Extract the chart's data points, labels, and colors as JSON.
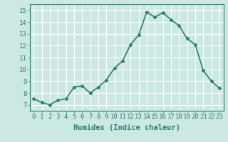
{
  "x": [
    0,
    1,
    2,
    3,
    4,
    5,
    6,
    7,
    8,
    9,
    10,
    11,
    12,
    13,
    14,
    15,
    16,
    17,
    18,
    19,
    20,
    21,
    22,
    23
  ],
  "y": [
    7.5,
    7.2,
    7.0,
    7.4,
    7.5,
    8.5,
    8.6,
    8.0,
    8.5,
    9.1,
    10.1,
    10.7,
    12.1,
    12.9,
    14.85,
    14.4,
    14.8,
    14.2,
    13.7,
    12.6,
    12.1,
    9.9,
    9.0,
    8.4
  ],
  "line_color": "#2e7d6e",
  "marker": "D",
  "marker_size": 2.5,
  "line_width": 1.2,
  "bg_color": "#cce8e4",
  "grid_color": "#ffffff",
  "xlabel": "Humidex (Indice chaleur)",
  "xlim": [
    -0.5,
    23.5
  ],
  "ylim": [
    6.5,
    15.5
  ],
  "yticks": [
    7,
    8,
    9,
    10,
    11,
    12,
    13,
    14,
    15
  ],
  "xticks": [
    0,
    1,
    2,
    3,
    4,
    5,
    6,
    7,
    8,
    9,
    10,
    11,
    12,
    13,
    14,
    15,
    16,
    17,
    18,
    19,
    20,
    21,
    22,
    23
  ],
  "xlabel_fontsize": 7.5,
  "tick_fontsize": 6.5,
  "title_color": "#2e7d6e",
  "spine_color": "#2e7d6e"
}
